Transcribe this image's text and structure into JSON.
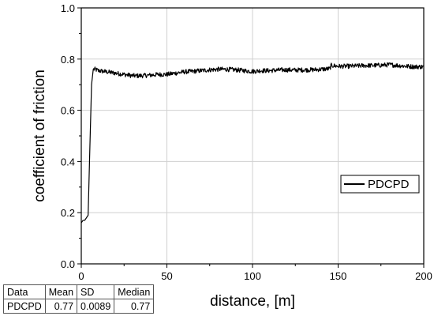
{
  "chart_data": {
    "type": "line",
    "xlabel": "distance, [m]",
    "ylabel": "coefficient of friction",
    "xlim": [
      0,
      200
    ],
    "ylim": [
      0,
      1.0
    ],
    "xticks": [
      "0",
      "50",
      "100",
      "150",
      "200"
    ],
    "yticks": [
      "0.0",
      "0.2",
      "0.4",
      "0.6",
      "0.8",
      "1.0"
    ],
    "grid": true,
    "legend": "right",
    "series": [
      {
        "name": "PDCPD",
        "color": "#000000",
        "x": [
          0,
          1,
          2,
          3,
          4,
          5,
          6,
          7,
          8,
          10,
          15,
          20,
          25,
          30,
          35,
          40,
          45,
          50,
          55,
          60,
          65,
          70,
          75,
          80,
          85,
          90,
          95,
          100,
          105,
          110,
          115,
          120,
          125,
          130,
          135,
          140,
          145,
          146,
          150,
          155,
          160,
          165,
          170,
          175,
          180,
          185,
          190,
          195,
          200
        ],
        "y": [
          0.16,
          0.17,
          0.17,
          0.18,
          0.19,
          0.45,
          0.7,
          0.76,
          0.76,
          0.755,
          0.75,
          0.745,
          0.74,
          0.735,
          0.735,
          0.737,
          0.74,
          0.74,
          0.745,
          0.75,
          0.752,
          0.755,
          0.758,
          0.76,
          0.76,
          0.758,
          0.755,
          0.752,
          0.755,
          0.755,
          0.757,
          0.758,
          0.757,
          0.758,
          0.758,
          0.76,
          0.762,
          0.775,
          0.772,
          0.772,
          0.773,
          0.775,
          0.775,
          0.776,
          0.778,
          0.775,
          0.772,
          0.77,
          0.77
        ]
      }
    ]
  },
  "stats_table": {
    "headers": [
      "Data",
      "Mean",
      "SD",
      "Median"
    ],
    "row": [
      "PDCPD",
      "0.77",
      "0.0089",
      "0.77"
    ]
  }
}
